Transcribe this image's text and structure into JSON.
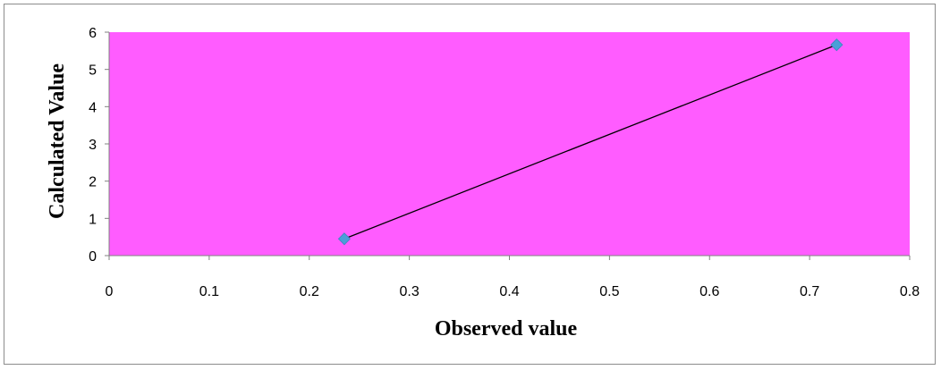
{
  "chart_data": {
    "type": "scatter",
    "title": "",
    "xlabel": "Observed value",
    "ylabel": "Calculated Value",
    "xlim": [
      0,
      0.8
    ],
    "ylim": [
      0,
      6
    ],
    "xticks": [
      "0",
      "0.1",
      "0.2",
      "0.3",
      "0.4",
      "0.5",
      "0.6",
      "0.7",
      "0.8"
    ],
    "yticks": [
      "0",
      "1",
      "2",
      "3",
      "4",
      "5",
      "6"
    ],
    "grid": false,
    "legend": "none",
    "series": [
      {
        "x": [
          0.235,
          0.727
        ],
        "y": [
          0.45,
          5.66
        ],
        "marker": "diamond",
        "line": true
      }
    ],
    "colors": {
      "plot_background": "#ff5cff",
      "marker": "#4a9fd8",
      "line": "#000000",
      "axis": "#808080",
      "frame": "#8c8c8c"
    }
  }
}
